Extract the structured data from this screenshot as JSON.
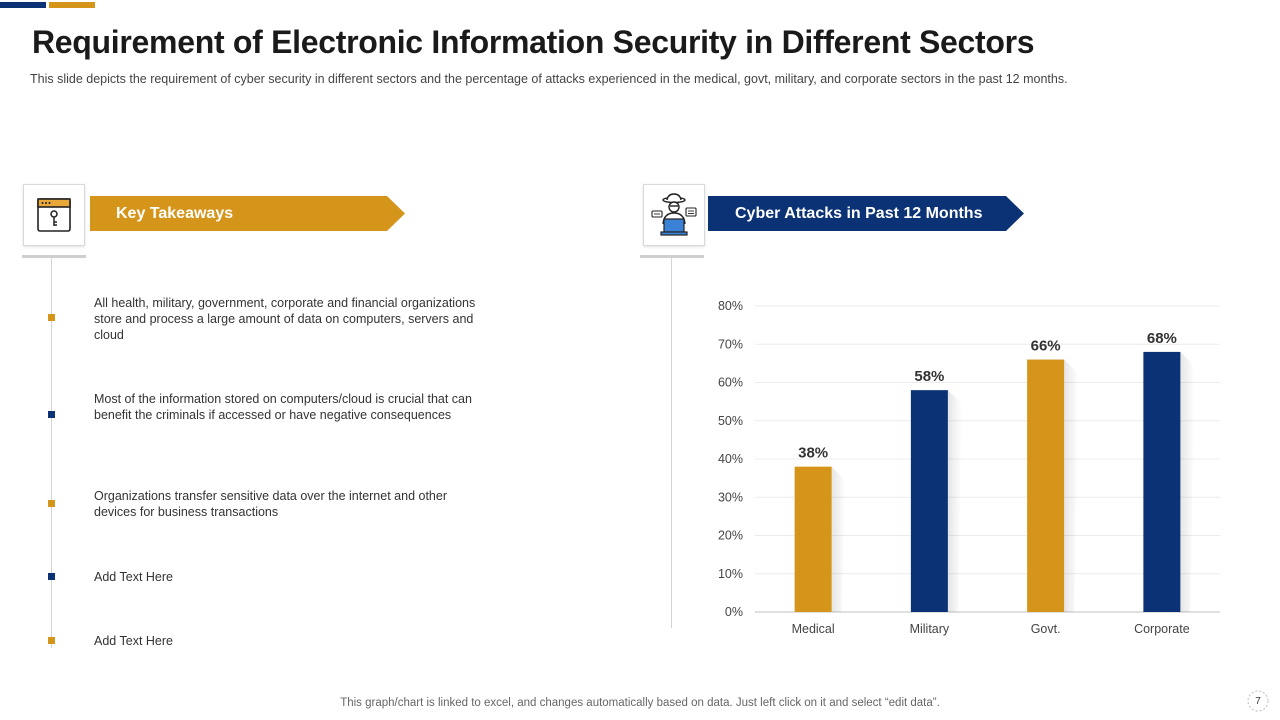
{
  "colors": {
    "navy": "#0B3275",
    "gold": "#D4951A"
  },
  "header": {
    "title": "Requirement of Electronic Information Security in Different Sectors",
    "subtitle": "This slide depicts the requirement  of cyber security in different  sectors and the percentage  of attacks experienced  in the medical, govt, military, and corporate sectors in the past 12 months."
  },
  "left_panel": {
    "icon": "document-key-icon",
    "banner_label": "Key Takeaways",
    "items": [
      {
        "text": "All health, military, government,  corporate and financial organizations store and process a large  amount of data on computers, servers  and cloud",
        "bullet_color": "gold"
      },
      {
        "text": "Most of the information  stored on computers/cloud is crucial that can benefit the criminals if accessed or have  negative consequences",
        "bullet_color": "navy"
      },
      {
        "text": "Organizations transfer  sensitive data over the internet and other devices  for business transactions",
        "bullet_color": "gold"
      },
      {
        "text": "Add Text Here",
        "bullet_color": "navy"
      },
      {
        "text": "Add Text Here",
        "bullet_color": "gold"
      }
    ]
  },
  "right_panel": {
    "icon": "hacker-laptop-icon",
    "banner_label": "Cyber Attacks  in Past 12 Months"
  },
  "chart_data": {
    "type": "bar",
    "title": "Cyber Attacks  in Past 12 Months",
    "categories": [
      "Medical",
      "Military",
      "Govt.",
      "Corporate"
    ],
    "values": [
      38,
      58,
      66,
      68
    ],
    "value_labels": [
      "38%",
      "58%",
      "66%",
      "68%"
    ],
    "bar_colors": [
      "#D4951A",
      "#0B3275",
      "#D4951A",
      "#0B3275"
    ],
    "ylim": [
      0,
      80
    ],
    "yticks": [
      "0%",
      "10%",
      "20%",
      "30%",
      "40%",
      "50%",
      "60%",
      "70%",
      "80%"
    ],
    "xlabel": "",
    "ylabel": "",
    "grid": true
  },
  "footer": {
    "note": "This graph/chart is linked to excel,  and changes automatically based on data. Just left click on it and select “edit data”.",
    "page_number": "7"
  }
}
